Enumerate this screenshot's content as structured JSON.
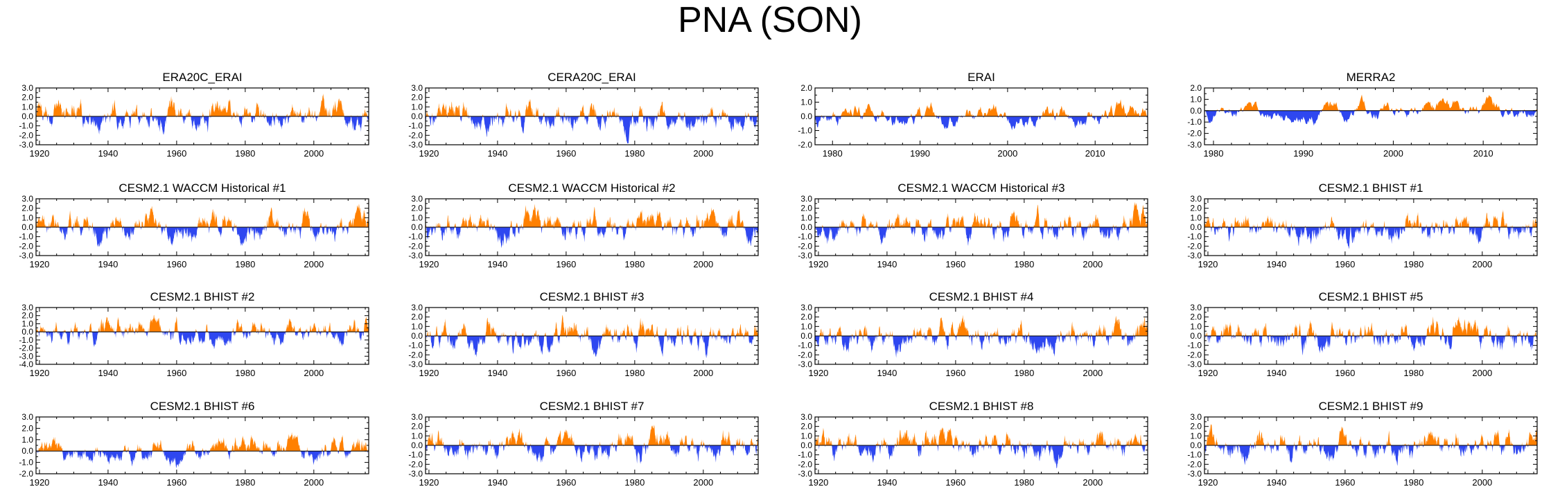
{
  "figure": {
    "title": "PNA (SON)",
    "colors": {
      "positive": "#ff8000",
      "negative": "#2e47f0",
      "axis": "#000000",
      "zero_line": "#000000"
    }
  },
  "chart_data": [
    {
      "type": "area",
      "title": "ERA20C_ERAI",
      "xlim": [
        1919,
        2016
      ],
      "ylim": [
        -3,
        3
      ],
      "xticks": [
        1920,
        1940,
        1960,
        1980,
        2000
      ],
      "yticks": [
        3.0,
        2.0,
        1.0,
        0.0,
        -1.0,
        -2.0,
        -3.0
      ],
      "ytick_labels": [
        "3.0",
        "2.0",
        "1.0",
        "0.0",
        "-1.0",
        "-2.0",
        "-3.0"
      ],
      "seed": 11
    },
    {
      "type": "area",
      "title": "CERA20C_ERAI",
      "xlim": [
        1919,
        2016
      ],
      "ylim": [
        -3,
        3
      ],
      "xticks": [
        1920,
        1940,
        1960,
        1980,
        2000
      ],
      "yticks": [
        3.0,
        2.0,
        1.0,
        0.0,
        -1.0,
        -2.0,
        -3.0
      ],
      "ytick_labels": [
        "3.0",
        "2.0",
        "1.0",
        "0.0",
        "-1.0",
        "-2.0",
        "-3.0"
      ],
      "seed": 12
    },
    {
      "type": "area",
      "title": "ERAI",
      "xlim": [
        1978,
        2016
      ],
      "ylim": [
        -2,
        2
      ],
      "xticks": [
        1980,
        1990,
        2000,
        2010
      ],
      "yticks": [
        2.0,
        1.0,
        0.0,
        -1.0,
        -2.0
      ],
      "ytick_labels": [
        "2.0",
        "1.0",
        "0.0",
        "-1.0",
        "-2.0"
      ],
      "seed": 13
    },
    {
      "type": "area",
      "title": "MERRA2",
      "xlim": [
        1979,
        2016
      ],
      "ylim": [
        -3,
        2
      ],
      "xticks": [
        1980,
        1990,
        2000,
        2010
      ],
      "yticks": [
        2.0,
        1.0,
        0.0,
        -1.0,
        -2.0,
        -3.0
      ],
      "ytick_labels": [
        "2.0",
        "1.0",
        "0.0",
        "-1.0",
        "-2.0",
        "-3.0"
      ],
      "seed": 14
    },
    {
      "type": "area",
      "title": "CESM2.1 WACCM Historical #1",
      "xlim": [
        1919,
        2016
      ],
      "ylim": [
        -3,
        3
      ],
      "xticks": [
        1920,
        1940,
        1960,
        1980,
        2000
      ],
      "yticks": [
        3.0,
        2.0,
        1.0,
        0.0,
        -1.0,
        -2.0,
        -3.0
      ],
      "ytick_labels": [
        "3.0",
        "2.0",
        "1.0",
        "0.0",
        "-1.0",
        "-2.0",
        "-3.0"
      ],
      "seed": 21
    },
    {
      "type": "area",
      "title": "CESM2.1 WACCM Historical #2",
      "xlim": [
        1919,
        2016
      ],
      "ylim": [
        -3,
        3
      ],
      "xticks": [
        1920,
        1940,
        1960,
        1980,
        2000
      ],
      "yticks": [
        3.0,
        2.0,
        1.0,
        0.0,
        -1.0,
        -2.0,
        -3.0
      ],
      "ytick_labels": [
        "3.0",
        "2.0",
        "1.0",
        "0.0",
        "-1.0",
        "-2.0",
        "-3.0"
      ],
      "seed": 22
    },
    {
      "type": "area",
      "title": "CESM2.1 WACCM Historical #3",
      "xlim": [
        1919,
        2016
      ],
      "ylim": [
        -3,
        3
      ],
      "xticks": [
        1920,
        1940,
        1960,
        1980,
        2000
      ],
      "yticks": [
        3.0,
        2.0,
        1.0,
        0.0,
        -1.0,
        -2.0,
        -3.0
      ],
      "ytick_labels": [
        "3.0",
        "2.0",
        "1.0",
        "0.0",
        "-1.0",
        "-2.0",
        "-3.0"
      ],
      "seed": 23
    },
    {
      "type": "area",
      "title": "CESM2.1 BHIST #1",
      "xlim": [
        1919,
        2016
      ],
      "ylim": [
        -3,
        3
      ],
      "xticks": [
        1920,
        1940,
        1960,
        1980,
        2000
      ],
      "yticks": [
        3.0,
        2.0,
        1.0,
        0.0,
        -1.0,
        -2.0,
        -3.0
      ],
      "ytick_labels": [
        "3.0",
        "2.0",
        "1.0",
        "0.0",
        "-1.0",
        "-2.0",
        "-3.0"
      ],
      "seed": 24
    },
    {
      "type": "area",
      "title": "CESM2.1 BHIST #2",
      "xlim": [
        1919,
        2016
      ],
      "ylim": [
        -4,
        3
      ],
      "xticks": [
        1920,
        1940,
        1960,
        1980,
        2000
      ],
      "yticks": [
        3.0,
        2.0,
        1.0,
        0.0,
        -1.0,
        -2.0,
        -3.0,
        -4.0
      ],
      "ytick_labels": [
        "3.0",
        "2.0",
        "1.0",
        "0.0",
        "-1.0",
        "-2.0",
        "-3.0",
        "-4.0"
      ],
      "seed": 31
    },
    {
      "type": "area",
      "title": "CESM2.1 BHIST #3",
      "xlim": [
        1919,
        2016
      ],
      "ylim": [
        -3,
        3
      ],
      "xticks": [
        1920,
        1940,
        1960,
        1980,
        2000
      ],
      "yticks": [
        3.0,
        2.0,
        1.0,
        0.0,
        -1.0,
        -2.0,
        -3.0
      ],
      "ytick_labels": [
        "3.0",
        "2.0",
        "1.0",
        "0.0",
        "-1.0",
        "-2.0",
        "-3.0"
      ],
      "seed": 32
    },
    {
      "type": "area",
      "title": "CESM2.1 BHIST #4",
      "xlim": [
        1919,
        2016
      ],
      "ylim": [
        -3,
        3
      ],
      "xticks": [
        1920,
        1940,
        1960,
        1980,
        2000
      ],
      "yticks": [
        3.0,
        2.0,
        1.0,
        0.0,
        -1.0,
        -2.0,
        -3.0
      ],
      "ytick_labels": [
        "3.0",
        "2.0",
        "1.0",
        "0.0",
        "-1.0",
        "-2.0",
        "-3.0"
      ],
      "seed": 33
    },
    {
      "type": "area",
      "title": "CESM2.1 BHIST #5",
      "xlim": [
        1919,
        2016
      ],
      "ylim": [
        -3,
        3
      ],
      "xticks": [
        1920,
        1940,
        1960,
        1980,
        2000
      ],
      "yticks": [
        3.0,
        2.0,
        1.0,
        0.0,
        -1.0,
        -2.0,
        -3.0
      ],
      "ytick_labels": [
        "3.0",
        "2.0",
        "1.0",
        "0.0",
        "-1.0",
        "-2.0",
        "-3.0"
      ],
      "seed": 34
    },
    {
      "type": "area",
      "title": "CESM2.1 BHIST #6",
      "xlim": [
        1919,
        2016
      ],
      "ylim": [
        -2,
        3
      ],
      "xticks": [
        1920,
        1940,
        1960,
        1980,
        2000
      ],
      "yticks": [
        3.0,
        2.0,
        1.0,
        0.0,
        -1.0,
        -2.0
      ],
      "ytick_labels": [
        "3.0",
        "2.0",
        "1.0",
        "0.0",
        "-1.0",
        "-2.0"
      ],
      "seed": 41
    },
    {
      "type": "area",
      "title": "CESM2.1 BHIST #7",
      "xlim": [
        1919,
        2016
      ],
      "ylim": [
        -3,
        3
      ],
      "xticks": [
        1920,
        1940,
        1960,
        1980,
        2000
      ],
      "yticks": [
        3.0,
        2.0,
        1.0,
        0.0,
        -1.0,
        -2.0,
        -3.0
      ],
      "ytick_labels": [
        "3.0",
        "2.0",
        "1.0",
        "0.0",
        "-1.0",
        "-2.0",
        "-3.0"
      ],
      "seed": 42
    },
    {
      "type": "area",
      "title": "CESM2.1 BHIST #8",
      "xlim": [
        1919,
        2016
      ],
      "ylim": [
        -3,
        3
      ],
      "xticks": [
        1920,
        1940,
        1960,
        1980,
        2000
      ],
      "yticks": [
        3.0,
        2.0,
        1.0,
        0.0,
        -1.0,
        -2.0,
        -3.0
      ],
      "ytick_labels": [
        "3.0",
        "2.0",
        "1.0",
        "0.0",
        "-1.0",
        "-2.0",
        "-3.0"
      ],
      "seed": 43
    },
    {
      "type": "area",
      "title": "CESM2.1 BHIST #9",
      "xlim": [
        1919,
        2016
      ],
      "ylim": [
        -3,
        3
      ],
      "xticks": [
        1920,
        1940,
        1960,
        1980,
        2000
      ],
      "yticks": [
        3.0,
        2.0,
        1.0,
        0.0,
        -1.0,
        -2.0,
        -3.0
      ],
      "ytick_labels": [
        "3.0",
        "2.0",
        "1.0",
        "0.0",
        "-1.0",
        "-2.0",
        "-3.0"
      ],
      "seed": 44
    }
  ]
}
